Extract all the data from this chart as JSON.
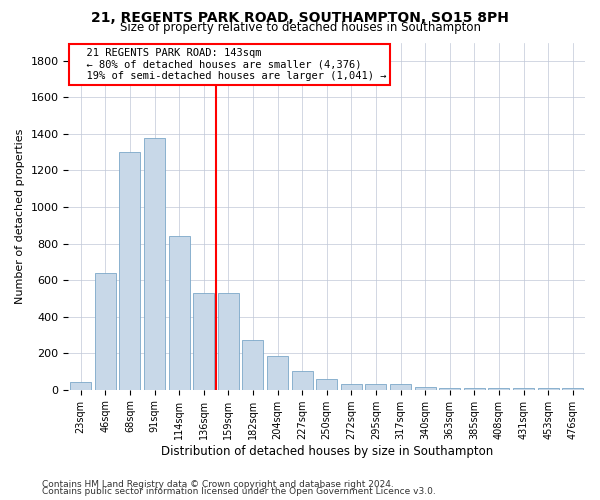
{
  "title1": "21, REGENTS PARK ROAD, SOUTHAMPTON, SO15 8PH",
  "title2": "Size of property relative to detached houses in Southampton",
  "xlabel": "Distribution of detached houses by size in Southampton",
  "ylabel": "Number of detached properties",
  "categories": [
    "23sqm",
    "46sqm",
    "68sqm",
    "91sqm",
    "114sqm",
    "136sqm",
    "159sqm",
    "182sqm",
    "204sqm",
    "227sqm",
    "250sqm",
    "272sqm",
    "295sqm",
    "317sqm",
    "340sqm",
    "363sqm",
    "385sqm",
    "408sqm",
    "431sqm",
    "453sqm",
    "476sqm"
  ],
  "values": [
    40,
    640,
    1300,
    1380,
    840,
    530,
    530,
    270,
    185,
    100,
    60,
    30,
    30,
    30,
    15,
    8,
    8,
    8,
    8,
    8,
    8
  ],
  "bar_color": "#c8d8e8",
  "bar_edge_color": "#7ba7c8",
  "red_line_x": 5.5,
  "annotation_text": "  21 REGENTS PARK ROAD: 143sqm\n  ← 80% of detached houses are smaller (4,376)\n  19% of semi-detached houses are larger (1,041) →",
  "ylim": [
    0,
    1900
  ],
  "yticks": [
    0,
    200,
    400,
    600,
    800,
    1000,
    1200,
    1400,
    1600,
    1800
  ],
  "footer1": "Contains HM Land Registry data © Crown copyright and database right 2024.",
  "footer2": "Contains public sector information licensed under the Open Government Licence v3.0.",
  "bg_color": "#ffffff",
  "grid_color": "#c0c8d8"
}
